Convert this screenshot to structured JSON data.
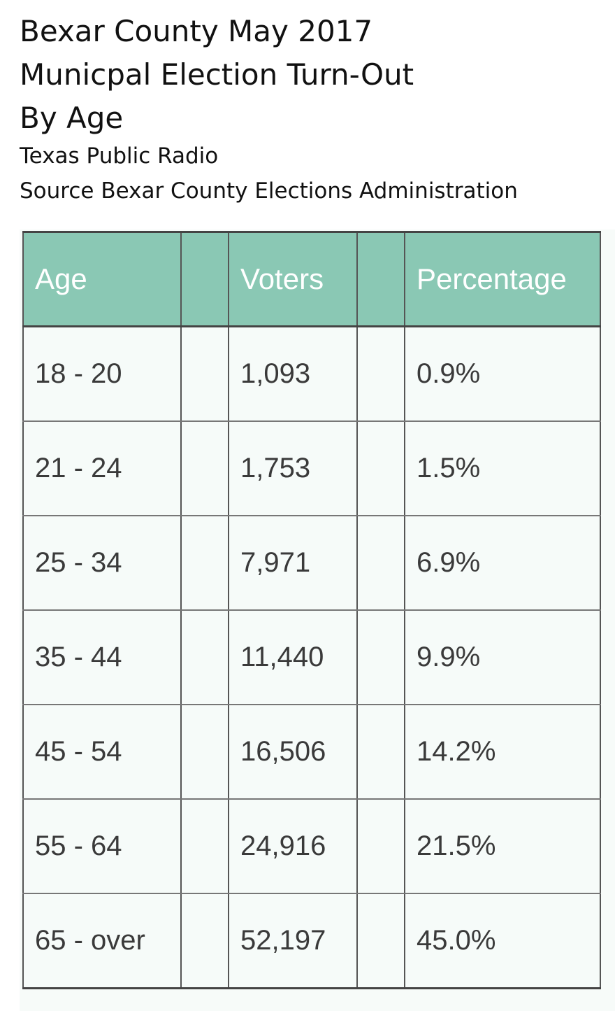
{
  "title_lines": [
    "Bexar County May 2017",
    "Municpal Election Turn-Out",
    "By Age"
  ],
  "subtitle_lines": [
    "Texas Public Radio",
    "Source Bexar County Elections Administration"
  ],
  "colors": {
    "header_bg": "#8ac8b4",
    "header_text": "#ffffff",
    "cell_bg": "#f6fbf9",
    "cell_text": "#3a3a3a",
    "border": "#555555"
  },
  "chart_data": {
    "type": "table",
    "columns": [
      "Age",
      "",
      "Voters",
      "",
      "Percentage"
    ],
    "rows": [
      {
        "age": "18 - 20",
        "voters": "1,093",
        "percentage": "0.9%"
      },
      {
        "age": "21 - 24",
        "voters": "1,753",
        "percentage": "1.5%"
      },
      {
        "age": "25 - 34",
        "voters": "7,971",
        "percentage": "6.9%"
      },
      {
        "age": "35 - 44",
        "voters": "11,440",
        "percentage": "9.9%"
      },
      {
        "age": "45 - 54",
        "voters": "16,506",
        "percentage": "14.2%"
      },
      {
        "age": "55 - 64",
        "voters": "24,916",
        "percentage": "21.5%"
      },
      {
        "age": "65 - over",
        "voters": "52,197",
        "percentage": "45.0%"
      }
    ]
  }
}
